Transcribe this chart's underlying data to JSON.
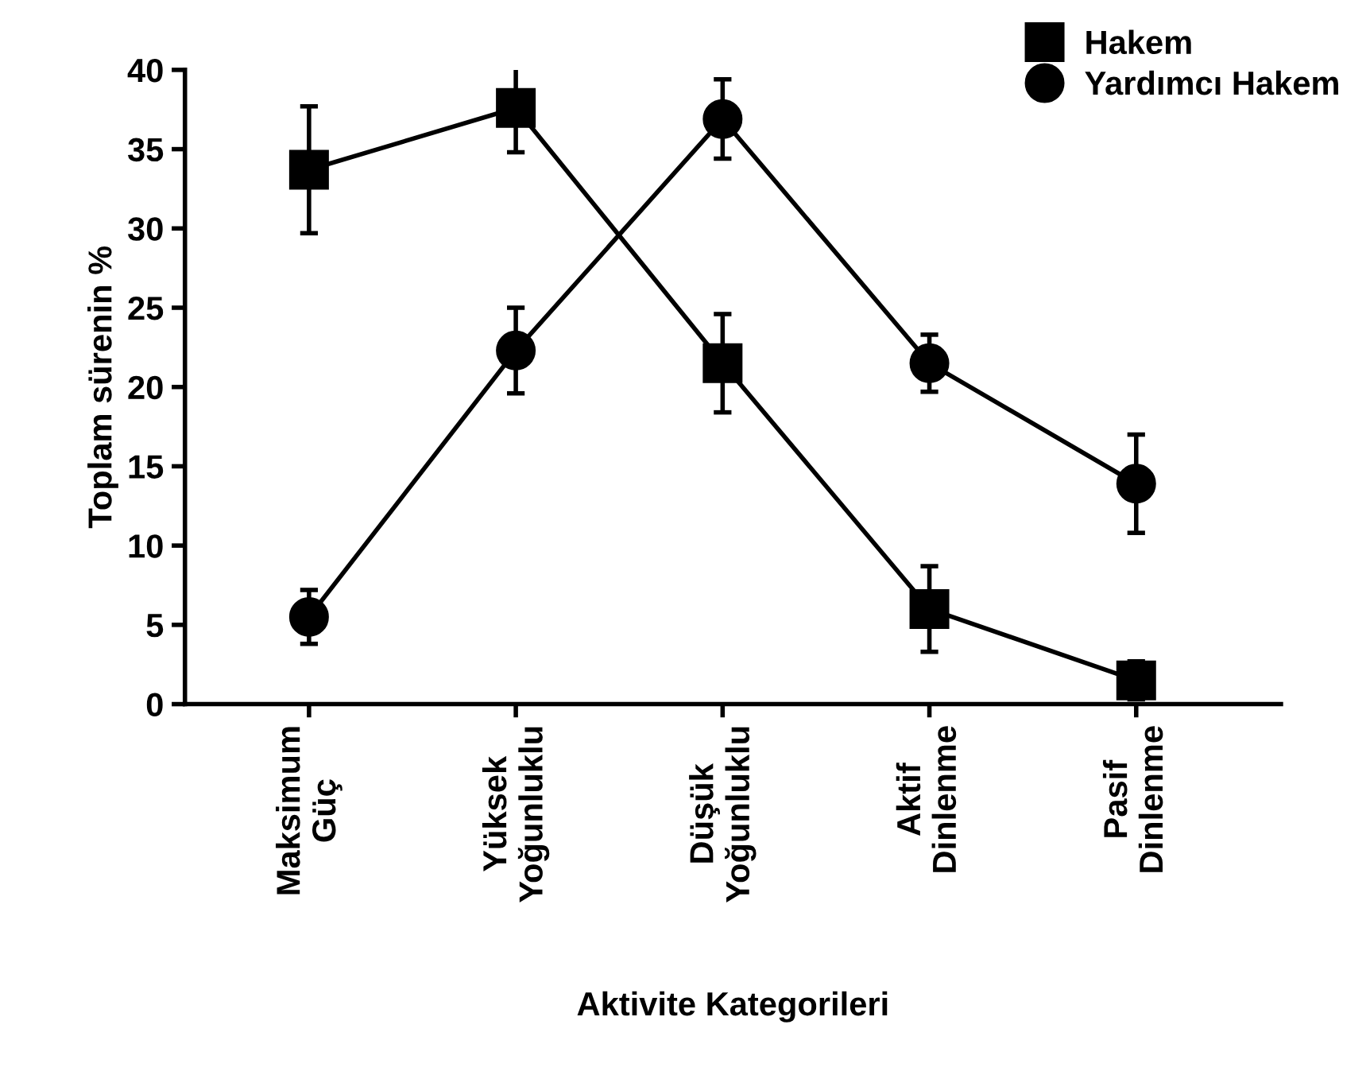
{
  "chart_data": {
    "type": "line",
    "xlabel": "Aktivite Kategorileri",
    "ylabel": "Toplam sürenin %",
    "categories": [
      "Maksimum\nGüç",
      "Yüksek\nYoğunluklu",
      "Düşük\nYoğunluklu",
      "Aktif\nDinlenme",
      "Pasif\nDinlenme"
    ],
    "series": [
      {
        "name": "Hakem",
        "color": "#000000",
        "marker": "square",
        "values": [
          33.7,
          37.6,
          21.5,
          6.0,
          1.5
        ],
        "errors": [
          4.0,
          2.8,
          3.1,
          2.7,
          1.2
        ]
      },
      {
        "name": "Yardımcı Hakem",
        "color": "#000000",
        "marker": "circle",
        "values": [
          5.5,
          22.3,
          36.9,
          21.5,
          13.9
        ],
        "errors": [
          1.7,
          2.7,
          2.5,
          1.8,
          3.1
        ]
      }
    ],
    "ylim": [
      0,
      40
    ],
    "yticks": [
      0,
      5,
      10,
      15,
      20,
      25,
      30,
      35,
      40
    ],
    "grid": false,
    "legend": "top right",
    "line_style": "solid"
  }
}
